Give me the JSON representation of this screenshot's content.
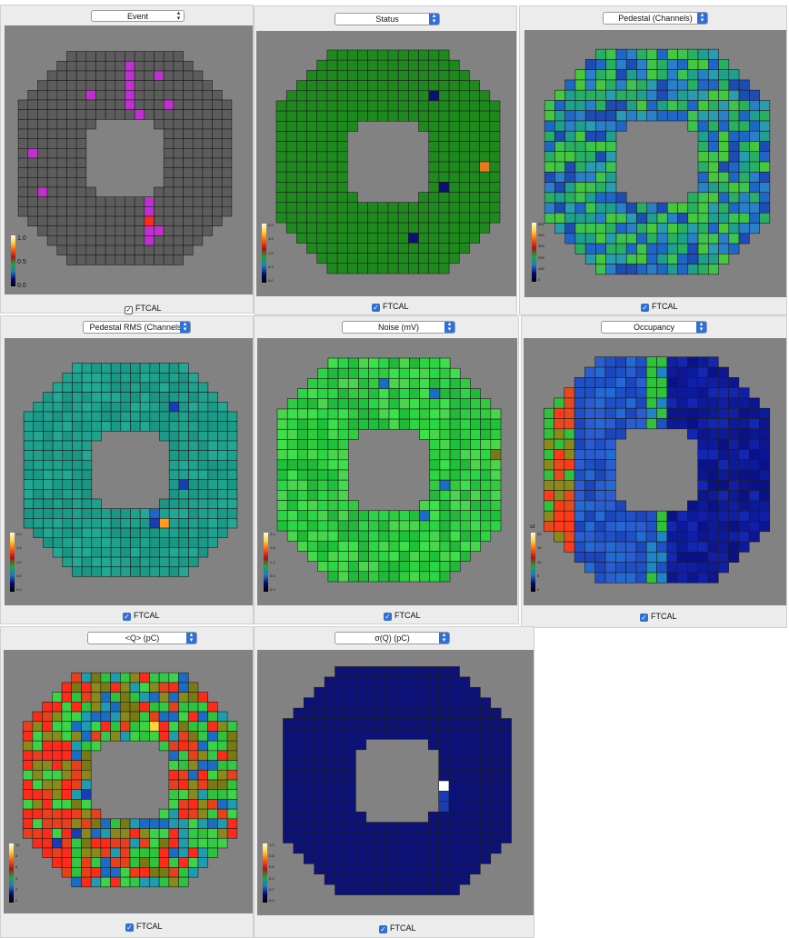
{
  "panels": [
    {
      "id": "event",
      "selector": "Event",
      "checkbox": "FTCAL",
      "scale": [
        "1.0",
        "0.5",
        "0.0"
      ],
      "scale_unit": ""
    },
    {
      "id": "status",
      "selector": "Status",
      "checkbox": "FTCAL",
      "scale": [
        "2.0",
        "1.5",
        "1.0",
        "0.5",
        "0.0"
      ],
      "scale_unit": ""
    },
    {
      "id": "pedestal",
      "selector": "Pedestal (Channels)",
      "checkbox": "FTCAL",
      "scale": [
        "500",
        "400",
        "300",
        "200",
        "100",
        "0"
      ],
      "scale_unit": ""
    },
    {
      "id": "pedestal_rms",
      "selector": "Pedestal RMS (Channels)",
      "checkbox": "FTCAL",
      "scale": [
        "2.0",
        "1.5",
        "1.0",
        "0.5",
        "0.0"
      ],
      "scale_unit": ""
    },
    {
      "id": "noise",
      "selector": "Noise (mV)",
      "checkbox": "FTCAL",
      "scale": [
        "2.4",
        "1.8",
        "1.2",
        "0.6",
        "0.0"
      ],
      "scale_unit": ""
    },
    {
      "id": "occupancy",
      "selector": "Occupancy",
      "checkbox": "FTCAL",
      "scale": [
        "20",
        "15",
        "10",
        "5",
        "0"
      ],
      "scale_unit": "x3"
    },
    {
      "id": "charge",
      "selector": "<Q> (pC)",
      "checkbox": "FTCAL",
      "scale": [
        "10",
        "8",
        "6",
        "4",
        "2",
        "0"
      ],
      "scale_unit": ""
    },
    {
      "id": "sigma_charge",
      "selector": "σ(Q) (pC)",
      "checkbox": "FTCAL",
      "scale": [
        "1.0",
        "0.8",
        "0.6",
        "0.4",
        "0.2",
        "0.0"
      ],
      "scale_unit": ""
    }
  ],
  "colors": {
    "background": "#828282",
    "panel": "#ececec",
    "accent": "#2f6fd6",
    "crystal_border": "#1e1e1e"
  },
  "icons": {
    "checkbox": "check-icon",
    "selector_arrow": "chevron-updown-icon"
  }
}
